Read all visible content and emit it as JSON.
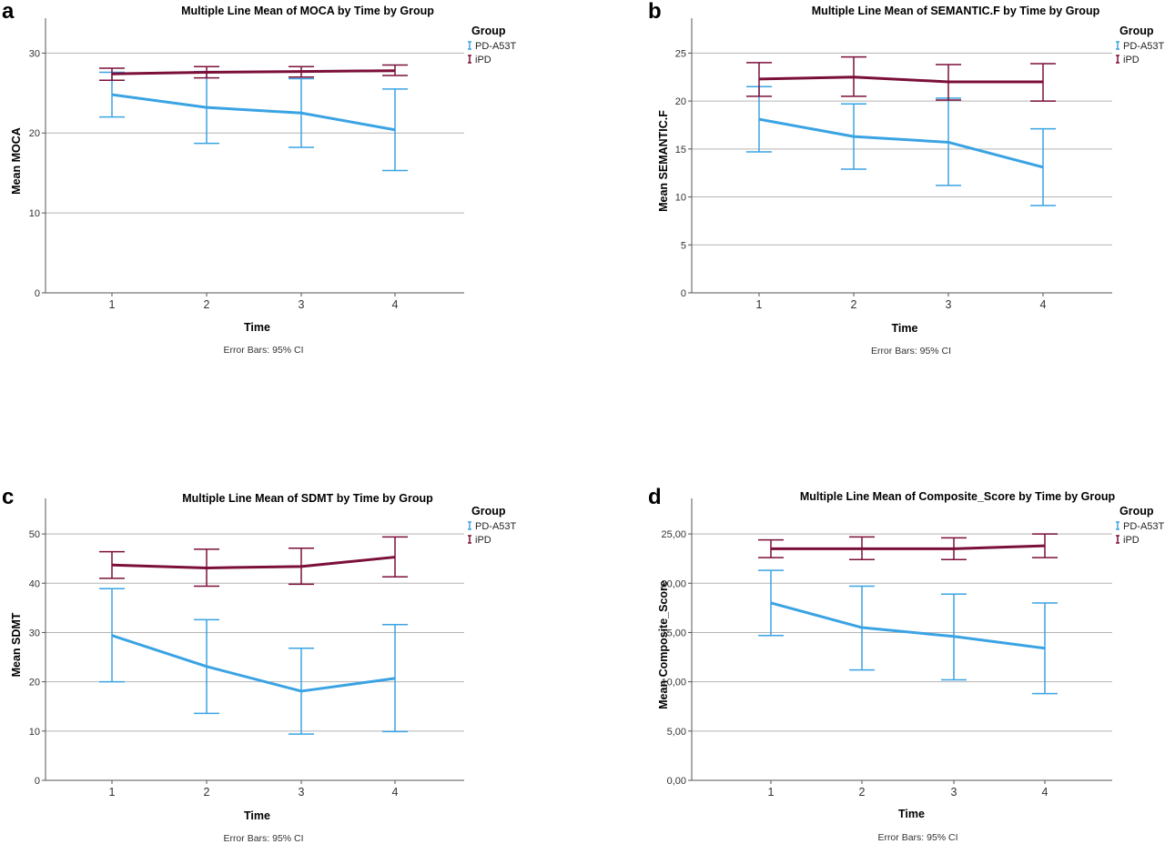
{
  "colors": {
    "pd_a53t": "#3aa3e3",
    "ipd": "#7b0f3a",
    "grid": "#b4b4b4",
    "axis": "#555555"
  },
  "chart_data": [
    {
      "panel": "a",
      "type": "line",
      "title": "Multiple Line Mean of MOCA by Time by Group",
      "xlabel": "Time",
      "ylabel": "Mean MOCA",
      "footnote": "Error Bars: 95% CI",
      "legend_title": "Group",
      "legend_position": "top-right",
      "grid": true,
      "categories": [
        "1",
        "2",
        "3",
        "4"
      ],
      "ylim": [
        0,
        33
      ],
      "yticks": [
        0,
        10,
        20,
        30
      ],
      "ytick_labels": [
        "0",
        "10",
        "20",
        "30"
      ],
      "series": [
        {
          "name": "PD-A53T",
          "color": "#3aa3e3",
          "values": [
            24.8,
            23.2,
            22.5,
            20.4
          ],
          "ci_low": [
            22.0,
            18.7,
            18.2,
            15.3
          ],
          "ci_high": [
            27.6,
            27.7,
            26.8,
            25.5
          ]
        },
        {
          "name": "iPD",
          "color": "#7b0f3a",
          "values": [
            27.4,
            27.6,
            27.7,
            27.8
          ],
          "ci_low": [
            26.6,
            26.9,
            27.0,
            27.2
          ],
          "ci_high": [
            28.1,
            28.3,
            28.3,
            28.5
          ]
        }
      ]
    },
    {
      "panel": "b",
      "type": "line",
      "title": "Multiple Line Mean of SEMANTIC.F by Time by Group",
      "xlabel": "Time",
      "ylabel": "Mean SEMANTIC.F",
      "footnote": "Error Bars: 95% CI",
      "legend_title": "Group",
      "legend_position": "top-right",
      "grid": true,
      "categories": [
        "1",
        "2",
        "3",
        "4"
      ],
      "ylim": [
        0,
        27.5
      ],
      "yticks": [
        0,
        5,
        10,
        15,
        20,
        25
      ],
      "ytick_labels": [
        "0",
        "5",
        "10",
        "15",
        "20",
        "25"
      ],
      "series": [
        {
          "name": "PD-A53T",
          "color": "#3aa3e3",
          "values": [
            18.1,
            16.3,
            15.7,
            13.1
          ],
          "ci_low": [
            14.7,
            12.9,
            11.2,
            9.1
          ],
          "ci_high": [
            21.5,
            19.7,
            20.3,
            17.1
          ]
        },
        {
          "name": "iPD",
          "color": "#7b0f3a",
          "values": [
            22.3,
            22.5,
            22.0,
            22.0
          ],
          "ci_low": [
            20.5,
            20.5,
            20.1,
            20.0
          ],
          "ci_high": [
            24.0,
            24.6,
            23.8,
            23.9
          ]
        }
      ]
    },
    {
      "panel": "c",
      "type": "line",
      "title": "Multiple Line Mean of SDMT by Time by Group",
      "xlabel": "Time",
      "ylabel": "Mean SDMT",
      "footnote": "Error Bars: 95% CI",
      "legend_title": "Group",
      "legend_position": "top-right",
      "grid": true,
      "categories": [
        "1",
        "2",
        "3",
        "4"
      ],
      "ylim": [
        0,
        55
      ],
      "yticks": [
        0,
        10,
        20,
        30,
        40,
        50
      ],
      "ytick_labels": [
        "0",
        "10",
        "20",
        "30",
        "40",
        "50"
      ],
      "series": [
        {
          "name": "PD-A53T",
          "color": "#3aa3e3",
          "values": [
            29.4,
            23.1,
            18.1,
            20.7
          ],
          "ci_low": [
            20.0,
            13.6,
            9.4,
            9.9
          ],
          "ci_high": [
            38.9,
            32.6,
            26.8,
            31.6
          ]
        },
        {
          "name": "iPD",
          "color": "#7b0f3a",
          "values": [
            43.7,
            43.1,
            43.4,
            45.3
          ],
          "ci_low": [
            41.0,
            39.4,
            39.8,
            41.3
          ],
          "ci_high": [
            46.4,
            46.9,
            47.1,
            49.4
          ]
        }
      ]
    },
    {
      "panel": "d",
      "type": "line",
      "title": "Multiple Line Mean of Composite_Score by Time by Group",
      "xlabel": "Time",
      "ylabel": "Mean Composite_Score",
      "footnote": "Error Bars: 95% CI",
      "legend_title": "Group",
      "legend_position": "top-right",
      "grid": true,
      "categories": [
        "1",
        "2",
        "3",
        "4"
      ],
      "ylim": [
        0,
        27.5
      ],
      "yticks": [
        0,
        5,
        10,
        15,
        20,
        25
      ],
      "ytick_labels": [
        "0,00",
        "5,00",
        "10,00",
        "15,00",
        "20,00",
        "25,00"
      ],
      "series": [
        {
          "name": "PD-A53T",
          "color": "#3aa3e3",
          "values": [
            18.0,
            15.5,
            14.6,
            13.4
          ],
          "ci_low": [
            14.7,
            11.2,
            10.2,
            8.8
          ],
          "ci_high": [
            21.3,
            19.7,
            18.9,
            18.0
          ]
        },
        {
          "name": "iPD",
          "color": "#7b0f3a",
          "values": [
            23.5,
            23.5,
            23.5,
            23.8
          ],
          "ci_low": [
            22.6,
            22.4,
            22.4,
            22.6
          ],
          "ci_high": [
            24.4,
            24.7,
            24.6,
            25.0
          ]
        }
      ]
    }
  ]
}
